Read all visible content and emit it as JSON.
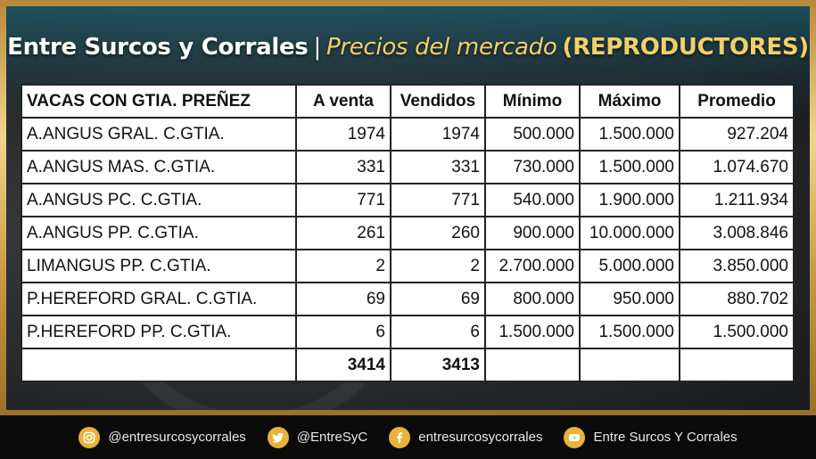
{
  "header": {
    "brand": "Entre Surcos y Corrales",
    "separator": "|",
    "subtitle": "Precios del mercado",
    "category": "(REPRODUCTORES)"
  },
  "table": {
    "columns": [
      "VACAS CON GTIA. PREÑEZ",
      "A venta",
      "Vendidos",
      "Mínimo",
      "Máximo",
      "Promedio"
    ],
    "rows": [
      [
        "A.ANGUS GRAL. C.GTIA.",
        "1974",
        "1974",
        "500.000",
        "1.500.000",
        "927.204"
      ],
      [
        "A.ANGUS MAS. C.GTIA.",
        "331",
        "331",
        "730.000",
        "1.500.000",
        "1.074.670"
      ],
      [
        "A.ANGUS PC. C.GTIA.",
        "771",
        "771",
        "540.000",
        "1.900.000",
        "1.211.934"
      ],
      [
        "A.ANGUS PP. C.GTIA.",
        "261",
        "260",
        "900.000",
        "10.000.000",
        "3.008.846"
      ],
      [
        "LIMANGUS PP. C.GTIA.",
        "2",
        "2",
        "2.700.000",
        "5.000.000",
        "3.850.000"
      ],
      [
        "P.HEREFORD GRAL. C.GTIA.",
        "69",
        "69",
        "800.000",
        "950.000",
        "880.702"
      ],
      [
        "P.HEREFORD PP. C.GTIA.",
        "6",
        "6",
        "1.500.000",
        "1.500.000",
        "1.500.000"
      ]
    ],
    "totals": [
      "",
      "3414",
      "3413",
      "",
      "",
      ""
    ]
  },
  "footer": {
    "instagram": {
      "icon": "instagram-icon",
      "handle": "@entresurcosycorrales"
    },
    "twitter": {
      "icon": "twitter-icon",
      "handle": "@EntreSyC"
    },
    "facebook": {
      "icon": "facebook-icon",
      "handle": "entresurcosycorrales"
    },
    "youtube": {
      "icon": "youtube-icon",
      "handle": "Entre Surcos Y Corrales"
    }
  },
  "colors": {
    "accent": "#f3cf6b",
    "icon_bg": "#e9b23b",
    "footer_bg": "#0b0b0b"
  }
}
